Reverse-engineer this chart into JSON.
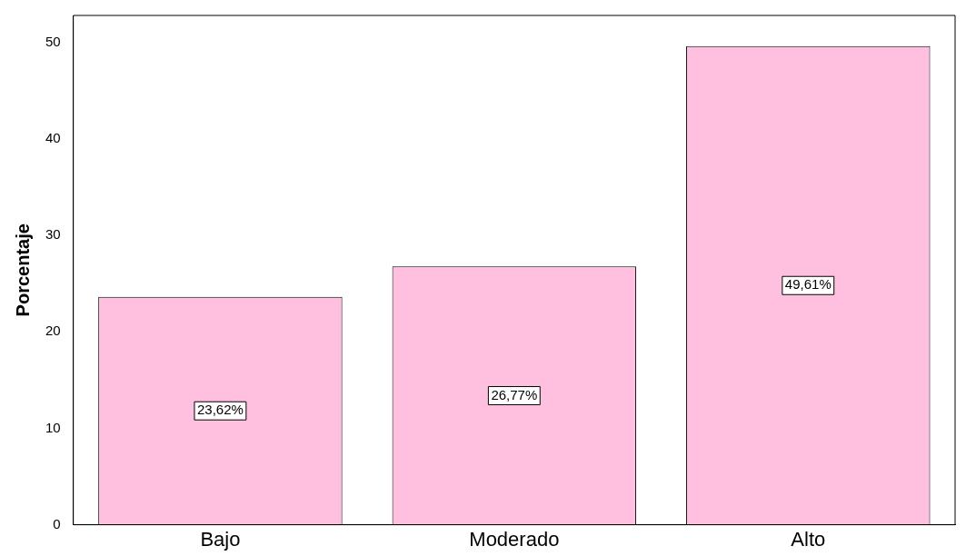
{
  "chart_data": {
    "type": "bar",
    "ylabel": "Porcentaje",
    "categories": [
      "Bajo",
      "Moderado",
      "Alto"
    ],
    "values": [
      23.62,
      26.77,
      49.61
    ],
    "value_labels": [
      "23,62%",
      "26,77%",
      "49,61%"
    ],
    "color": "#ffc0e0",
    "ylim": [
      0,
      52.8
    ],
    "yticks": [
      0,
      10,
      20,
      30,
      40,
      50
    ],
    "grid": false,
    "legend": false
  }
}
